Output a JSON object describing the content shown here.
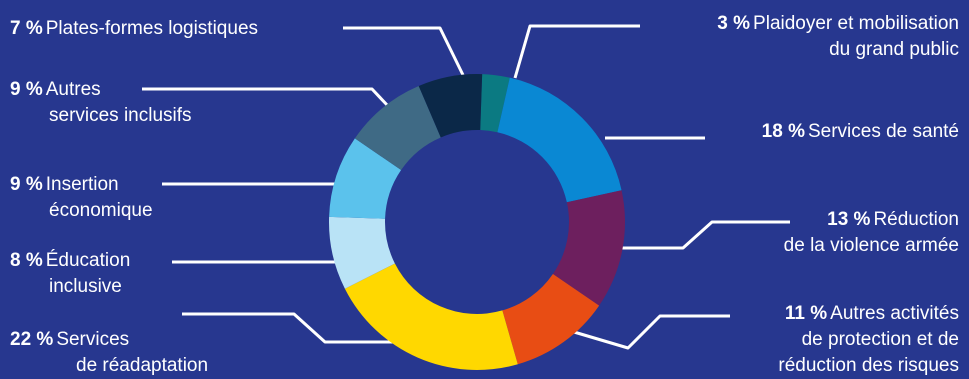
{
  "chart_data": {
    "type": "pie",
    "variant": "donut",
    "colors": {
      "background": "#27378f",
      "leader_lines": "#ffffff",
      "text": "#ffffff"
    },
    "slices": [
      {
        "pct_label": "3 %",
        "value": 3,
        "line1": "Plaidoyer et mobilisation",
        "line2": "du grand public",
        "line3": "",
        "color": "#0b7a82"
      },
      {
        "pct_label": "18 %",
        "value": 18,
        "line1": "Services de santé",
        "line2": "",
        "line3": "",
        "color": "#0a88d3"
      },
      {
        "pct_label": "13 %",
        "value": 13,
        "line1": "Réduction",
        "line2": "de la violence armée",
        "line3": "",
        "color": "#6d1f5e"
      },
      {
        "pct_label": "11 %",
        "value": 11,
        "line1": "Autres activités",
        "line2": "de protection et de",
        "line3": "réduction des risques",
        "color": "#e84d14"
      },
      {
        "pct_label": "22 %",
        "value": 22,
        "line1": "Services",
        "line2": "de réadaptation",
        "line3": "",
        "color": "#ffd800"
      },
      {
        "pct_label": "8 %",
        "value": 8,
        "line1": "Éducation",
        "line2": "inclusive",
        "line3": "",
        "color": "#b9e3f6"
      },
      {
        "pct_label": "9 %",
        "value": 9,
        "line1": "Insertion",
        "line2": "économique",
        "line3": "",
        "color": "#5bc2ec"
      },
      {
        "pct_label": "9 %",
        "value": 9,
        "line1": "Autres",
        "line2": "services inclusifs",
        "line3": "",
        "color": "#3f6a85"
      },
      {
        "pct_label": "7 %",
        "value": 7,
        "line1": "Plates-formes logistiques",
        "line2": "",
        "line3": "",
        "color": "#0b2848"
      }
    ]
  }
}
